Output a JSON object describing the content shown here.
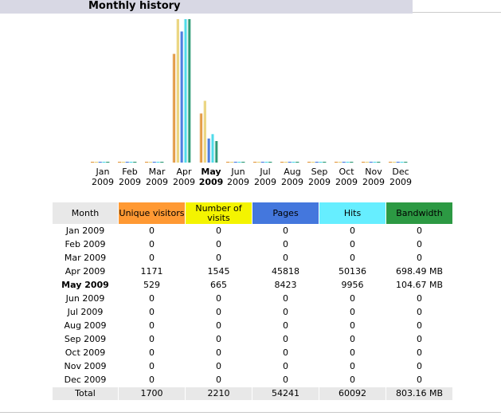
{
  "section": {
    "title": "Monthly history"
  },
  "colors": {
    "unique_visitors": "#ff9933",
    "visits": "#f4f400",
    "pages": "#4477dd",
    "hits": "#66eeff",
    "bandwidth": "#2c9943",
    "header_gray": "#e8e8e8"
  },
  "table": {
    "headers": {
      "month": "Month",
      "unique_visitors": "Unique visitors",
      "visits": "Number of visits",
      "pages": "Pages",
      "hits": "Hits",
      "bandwidth": "Bandwidth"
    },
    "rows": [
      {
        "month": "Jan 2009",
        "unique": "0",
        "visits": "0",
        "pages": "0",
        "hits": "0",
        "bandwidth": "0"
      },
      {
        "month": "Feb 2009",
        "unique": "0",
        "visits": "0",
        "pages": "0",
        "hits": "0",
        "bandwidth": "0"
      },
      {
        "month": "Mar 2009",
        "unique": "0",
        "visits": "0",
        "pages": "0",
        "hits": "0",
        "bandwidth": "0"
      },
      {
        "month": "Apr 2009",
        "unique": "1171",
        "visits": "1545",
        "pages": "45818",
        "hits": "50136",
        "bandwidth": "698.49 MB"
      },
      {
        "month": "May 2009",
        "unique": "529",
        "visits": "665",
        "pages": "8423",
        "hits": "9956",
        "bandwidth": "104.67 MB"
      },
      {
        "month": "Jun 2009",
        "unique": "0",
        "visits": "0",
        "pages": "0",
        "hits": "0",
        "bandwidth": "0"
      },
      {
        "month": "Jul 2009",
        "unique": "0",
        "visits": "0",
        "pages": "0",
        "hits": "0",
        "bandwidth": "0"
      },
      {
        "month": "Aug 2009",
        "unique": "0",
        "visits": "0",
        "pages": "0",
        "hits": "0",
        "bandwidth": "0"
      },
      {
        "month": "Sep 2009",
        "unique": "0",
        "visits": "0",
        "pages": "0",
        "hits": "0",
        "bandwidth": "0"
      },
      {
        "month": "Oct 2009",
        "unique": "0",
        "visits": "0",
        "pages": "0",
        "hits": "0",
        "bandwidth": "0"
      },
      {
        "month": "Nov 2009",
        "unique": "0",
        "visits": "0",
        "pages": "0",
        "hits": "0",
        "bandwidth": "0"
      },
      {
        "month": "Dec 2009",
        "unique": "0",
        "visits": "0",
        "pages": "0",
        "hits": "0",
        "bandwidth": "0"
      }
    ],
    "total": {
      "month": "Total",
      "unique": "1700",
      "visits": "2210",
      "pages": "54241",
      "hits": "60092",
      "bandwidth": "803.16 MB"
    }
  },
  "chart_data": {
    "type": "bar",
    "categories": [
      {
        "month": "Jan",
        "year": "2009"
      },
      {
        "month": "Feb",
        "year": "2009"
      },
      {
        "month": "Mar",
        "year": "2009"
      },
      {
        "month": "Apr",
        "year": "2009"
      },
      {
        "month": "May",
        "year": "2009"
      },
      {
        "month": "Jun",
        "year": "2009"
      },
      {
        "month": "Jul",
        "year": "2009"
      },
      {
        "month": "Aug",
        "year": "2009"
      },
      {
        "month": "Sep",
        "year": "2009"
      },
      {
        "month": "Oct",
        "year": "2009"
      },
      {
        "month": "Nov",
        "year": "2009"
      },
      {
        "month": "Dec",
        "year": "2009"
      }
    ],
    "current_month_index": 4,
    "series": [
      {
        "key": "unique",
        "color": "#e09030",
        "values": [
          0,
          0,
          0,
          1171,
          529,
          0,
          0,
          0,
          0,
          0,
          0,
          0
        ]
      },
      {
        "key": "visits",
        "color": "#e8d070",
        "values": [
          0,
          0,
          0,
          1545,
          665,
          0,
          0,
          0,
          0,
          0,
          0,
          0
        ]
      },
      {
        "key": "pages",
        "color": "#3a6fdc",
        "values": [
          0,
          0,
          0,
          45818,
          8423,
          0,
          0,
          0,
          0,
          0,
          0,
          0
        ]
      },
      {
        "key": "hits",
        "color": "#40d8e8",
        "values": [
          0,
          0,
          0,
          50136,
          9956,
          0,
          0,
          0,
          0,
          0,
          0,
          0
        ]
      },
      {
        "key": "bandwidth",
        "color": "#1a9068",
        "values": [
          0,
          0,
          0,
          698.49,
          104.67,
          0,
          0,
          0,
          0,
          0,
          0,
          0
        ]
      }
    ],
    "scale_groups": [
      [
        "unique",
        "visits"
      ],
      [
        "pages",
        "hits"
      ],
      [
        "bandwidth"
      ]
    ]
  }
}
